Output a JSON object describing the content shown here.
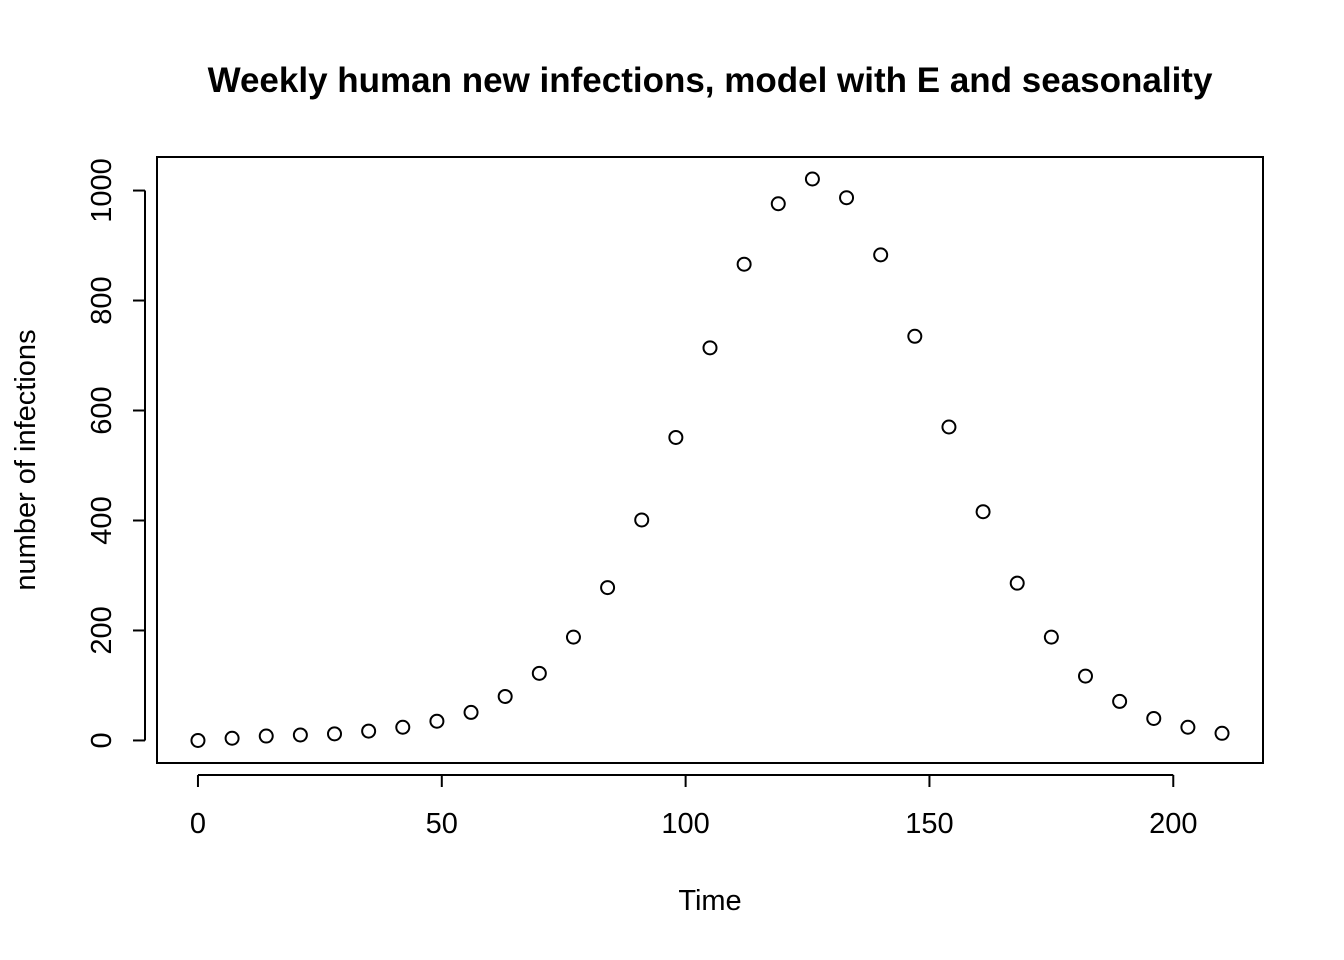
{
  "chart_data": {
    "type": "scatter",
    "title": "Weekly human new infections, model with E and seasonality",
    "xlabel": "Time",
    "ylabel": "number of infections",
    "xlim": [
      -8.4,
      218.4
    ],
    "ylim": [
      -41,
      1061
    ],
    "xticks": [
      0,
      50,
      100,
      150,
      200
    ],
    "yticks": [
      0,
      200,
      400,
      600,
      800,
      1000
    ],
    "grid": false,
    "legend": "none",
    "marker": "open-circle",
    "x": [
      0,
      7,
      14,
      21,
      28,
      35,
      42,
      49,
      56,
      63,
      70,
      77,
      84,
      91,
      98,
      105,
      112,
      119,
      126,
      133,
      140,
      147,
      154,
      161,
      168,
      175,
      182,
      189,
      196,
      203,
      210
    ],
    "y": [
      0,
      4,
      8,
      10,
      12,
      17,
      24,
      35,
      51,
      80,
      122,
      188,
      278,
      401,
      551,
      714,
      866,
      976,
      1021,
      987,
      883,
      735,
      570,
      416,
      286,
      188,
      117,
      71,
      40,
      24,
      13
    ]
  }
}
